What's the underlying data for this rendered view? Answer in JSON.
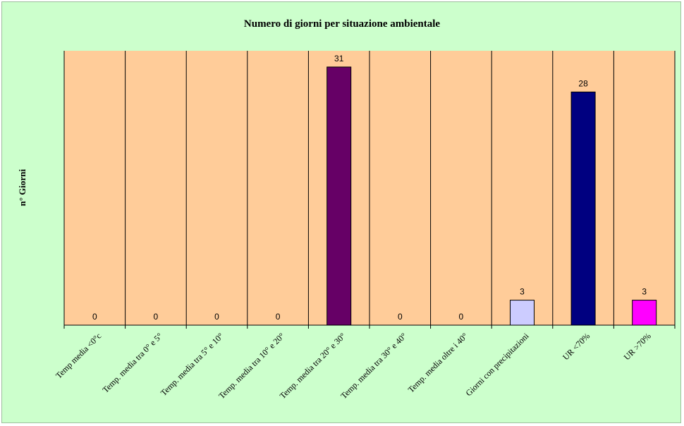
{
  "chart_data": {
    "type": "bar",
    "title": "Numero di giorni per situazione ambientale",
    "xlabel": "",
    "ylabel": "n° Giorni",
    "categories": [
      "Temp media <0°c",
      "Temp. media tra 0° e 5°",
      "Temp. media tra 5° e 10°",
      "Temp. media tra 10° e 20°",
      "Temp. media tra 20° e 30°",
      "Temp. media tra 30° e 40°",
      "Temp. media oltre i 40°",
      "Giorni con precipitazioni",
      "UR <70%",
      "UR >70%"
    ],
    "values": [
      0,
      0,
      0,
      0,
      31,
      0,
      0,
      3,
      28,
      3
    ],
    "bar_colors": [
      "#660066",
      "#660066",
      "#660066",
      "#660066",
      "#660066",
      "#660066",
      "#660066",
      "#ccccff",
      "#000080",
      "#ff00ff"
    ],
    "data_labels_shown": true,
    "ylim": [
      0,
      31
    ],
    "grid": "vertical category separators",
    "legend": "none",
    "background_color": "#ccffcc",
    "plot_area_color": "#ffcc99"
  }
}
